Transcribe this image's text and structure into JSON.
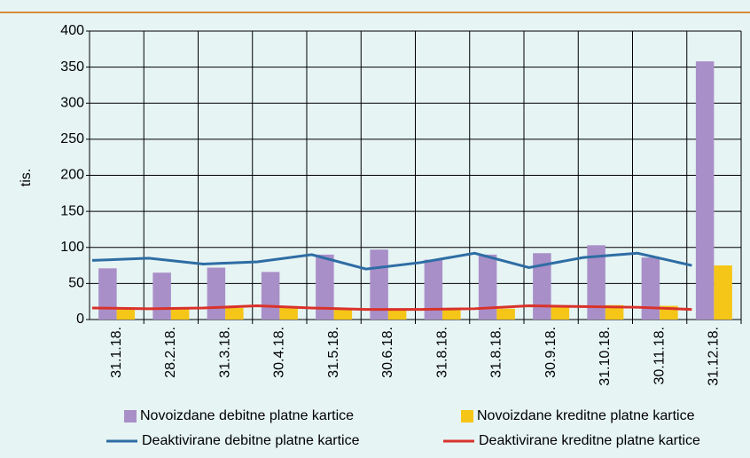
{
  "chart_data": {
    "type": "bar",
    "y_label": "tis.",
    "categories": [
      "31.1.18.",
      "28.2.18.",
      "31.3.18.",
      "30.4.18.",
      "31.5.18.",
      "30.6.18.",
      "31.8.18.",
      "31.8.18.",
      "30.9.18.",
      "31.10.18.",
      "30.11.18.",
      "31.12.18."
    ],
    "series": [
      {
        "name": "Novoizdane debitne platne kartice",
        "type": "bar",
        "color": "#a98fc8",
        "values": [
          71,
          65,
          72,
          66,
          90,
          97,
          83,
          90,
          92,
          103,
          86,
          358
        ]
      },
      {
        "name": "Novoizdane kreditne platne kartice",
        "type": "bar",
        "color": "#f5c518",
        "values": [
          17,
          15,
          16,
          17,
          15,
          14,
          14,
          15,
          18,
          20,
          19,
          75
        ]
      },
      {
        "name": "Deaktivirane debitne platne kartice",
        "type": "line",
        "color": "#2e6da4",
        "values": [
          82,
          85,
          77,
          80,
          90,
          70,
          79,
          92,
          72,
          86,
          92,
          75
        ]
      },
      {
        "name": "Deaktivirane kreditne platne kartice",
        "type": "line",
        "color": "#d9322b",
        "values": [
          16,
          15,
          16,
          19,
          16,
          14,
          14,
          15,
          19,
          18,
          17,
          14
        ]
      }
    ],
    "ylim": [
      0,
      400
    ],
    "yticks": [
      0,
      50,
      100,
      150,
      200,
      250,
      300,
      350,
      400
    ],
    "grid": true
  }
}
